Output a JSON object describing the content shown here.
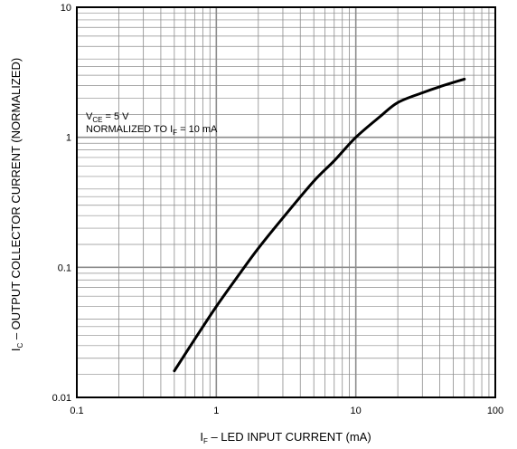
{
  "chart_data": {
    "type": "line",
    "xscale": "log",
    "yscale": "log",
    "xlim": [
      0.1,
      100
    ],
    "ylim": [
      0.01,
      10
    ],
    "grid": true,
    "x_ticks": [
      "0.1",
      "1",
      "10",
      "100"
    ],
    "y_ticks": [
      "0.01",
      "0.1",
      "1",
      "10"
    ],
    "xlabel": {
      "main": "I",
      "sub": "F",
      "rest": " – LED INPUT CURRENT (mA)"
    },
    "ylabel": {
      "main": "I",
      "sub": "C",
      "rest": " – OUTPUT COLLECTOR CURRENT (NORMALIZED)"
    },
    "annotations": [
      {
        "main": "V",
        "sub": "CE",
        "rest": " = 5 V"
      },
      {
        "main": "NORMALIZED TO I",
        "sub": "F",
        "rest": " = 10 mA"
      }
    ],
    "series": [
      {
        "x": [
          0.5,
          0.7,
          1,
          1.5,
          2,
          3,
          5,
          7,
          10,
          15,
          20,
          30,
          40,
          60
        ],
        "y": [
          0.016,
          0.028,
          0.05,
          0.092,
          0.14,
          0.24,
          0.46,
          0.66,
          1.0,
          1.45,
          1.85,
          2.2,
          2.45,
          2.8
        ]
      }
    ]
  }
}
